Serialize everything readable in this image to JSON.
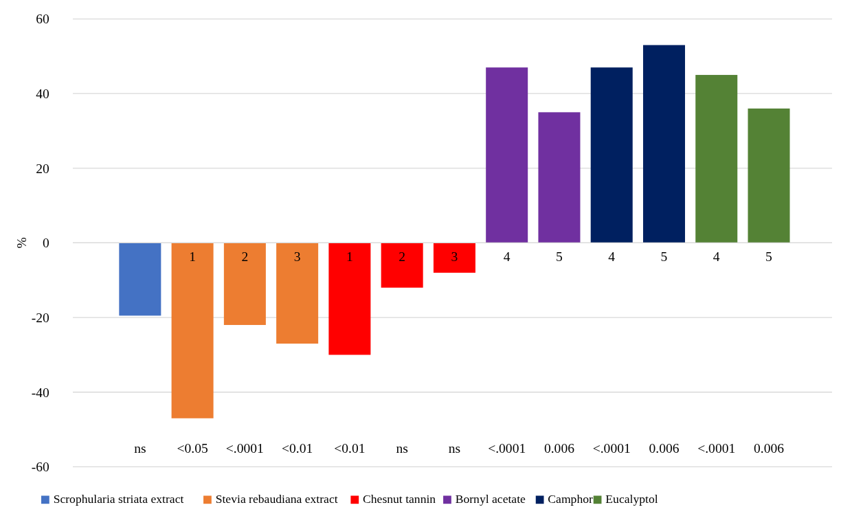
{
  "chart_data": {
    "type": "bar",
    "ylabel": "%",
    "categories": [
      null,
      "1",
      "2",
      "3",
      "1",
      "2",
      "3",
      "4",
      "5",
      "4",
      "5",
      "4",
      "5"
    ],
    "series": [
      {
        "name": "Scrophularia striata extract",
        "color": "#4472c4",
        "values": [
          -19.5,
          null,
          null,
          null,
          null,
          null,
          null,
          null,
          null,
          null,
          null,
          null,
          null
        ]
      },
      {
        "name": "Stevia rebaudiana extract",
        "color": "#ed7d31",
        "values": [
          null,
          -47,
          -22,
          -27,
          null,
          null,
          null,
          null,
          null,
          null,
          null,
          null,
          null
        ]
      },
      {
        "name": "Chesnut tannin",
        "color": "#ff0000",
        "values": [
          null,
          null,
          null,
          null,
          -30,
          -12,
          -8,
          null,
          null,
          null,
          null,
          null,
          null
        ]
      },
      {
        "name": "Bornyl acetate",
        "color": "#7030a0",
        "values": [
          null,
          null,
          null,
          null,
          null,
          null,
          null,
          47,
          35,
          null,
          null,
          null,
          null
        ]
      },
      {
        "name": "Camphor",
        "color": "#002060",
        "values": [
          null,
          null,
          null,
          null,
          null,
          null,
          null,
          null,
          null,
          47,
          53,
          null,
          null
        ]
      },
      {
        "name": "Eucalyptol",
        "color": "#548235",
        "values": [
          null,
          null,
          null,
          null,
          null,
          null,
          null,
          null,
          null,
          null,
          null,
          45,
          36
        ]
      }
    ],
    "annotations": [
      "ns",
      "<0.05",
      "<.0001",
      "<0.01",
      "<0.01",
      "ns",
      "ns",
      "<.0001",
      "0.006",
      "<.0001",
      "0.006",
      "<.0001",
      "0.006"
    ],
    "ylim": [
      -60,
      60
    ],
    "yticks": [
      -60,
      -40,
      -20,
      0,
      20,
      40,
      60
    ],
    "grid": "y",
    "legend": "bottom"
  }
}
